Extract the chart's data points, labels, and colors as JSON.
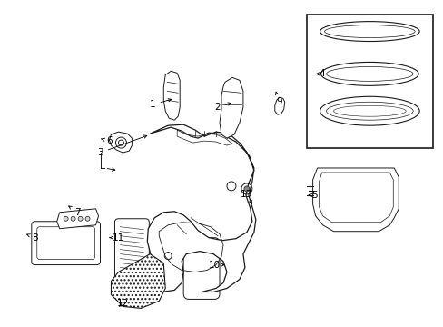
{
  "bg_color": "#ffffff",
  "line_color": "#1a1a1a",
  "fig_width": 4.89,
  "fig_height": 3.6,
  "dpi": 100,
  "font_size": 7.5,
  "lw": 0.7
}
